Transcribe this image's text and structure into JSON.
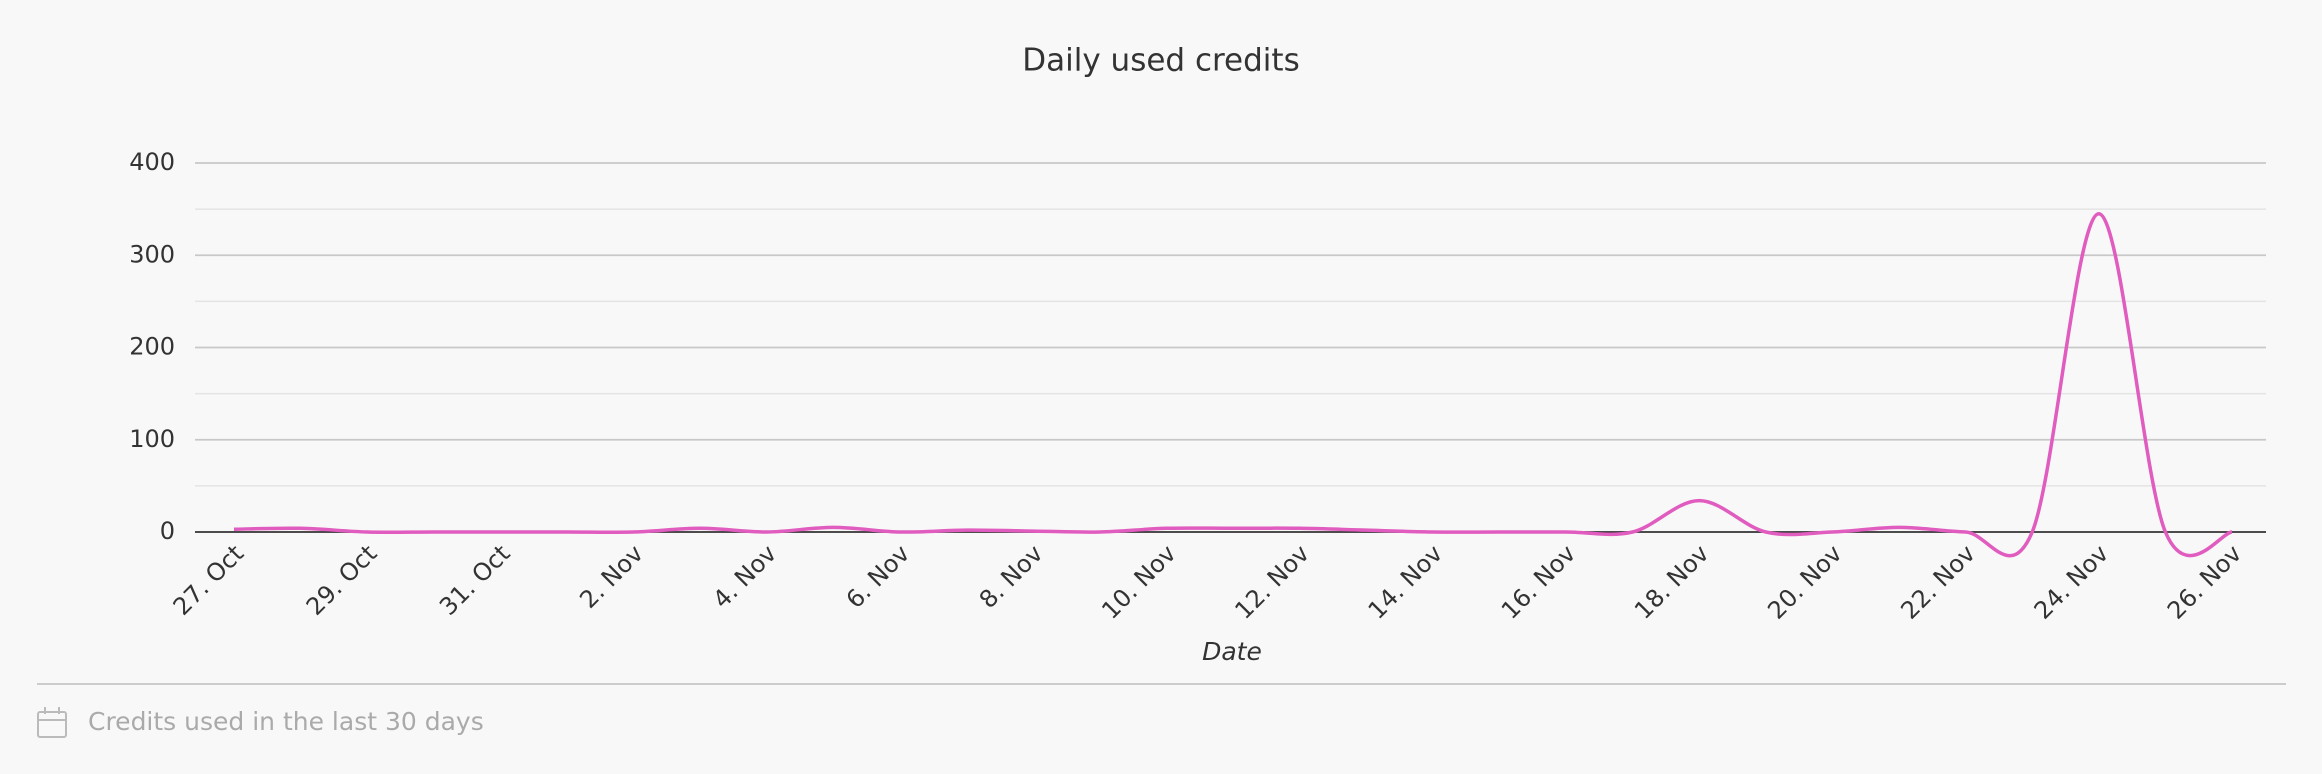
{
  "chart_data": {
    "type": "line",
    "title": "Daily used credits",
    "x_label": "Date",
    "categories": [
      "27. Oct",
      null,
      "29. Oct",
      null,
      "31. Oct",
      null,
      "2. Nov",
      null,
      "4. Nov",
      null,
      "6. Nov",
      null,
      "8. Nov",
      null,
      "10. Nov",
      null,
      "12. Nov",
      null,
      "14. Nov",
      null,
      "16. Nov",
      null,
      "18. Nov",
      null,
      "20. Nov",
      null,
      "22. Nov",
      null,
      "24. Nov",
      null,
      "26. Nov"
    ],
    "values": [
      3,
      4,
      0,
      0,
      0,
      0,
      0,
      4,
      0,
      5,
      0,
      2,
      1,
      0,
      4,
      4,
      4,
      2,
      0,
      0,
      0,
      0,
      34,
      0,
      0,
      5,
      0,
      0,
      345,
      0,
      0
    ],
    "color": "#e05cbf",
    "ylim": [
      0,
      400
    ],
    "yticks": [
      0,
      100,
      200,
      300,
      400
    ],
    "grid": true,
    "minor_grid": true
  },
  "footer": {
    "text": "Credits used in the last 30 days"
  }
}
